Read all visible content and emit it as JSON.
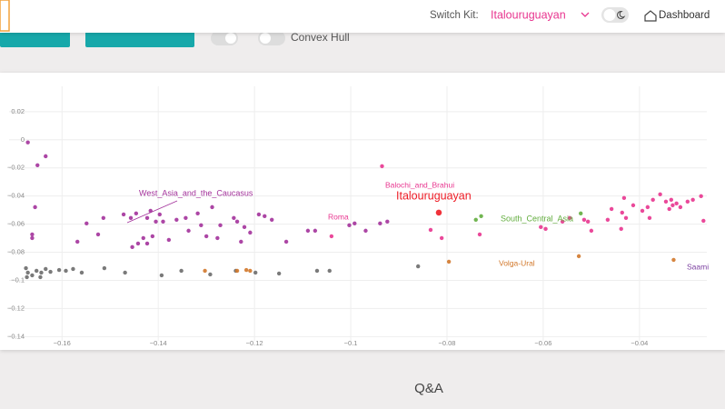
{
  "header": {
    "switch_label": "Switch Kit:",
    "kit": "Italouruguayan",
    "dashboard": "Dashboard"
  },
  "controls": {
    "convex_hull": "Convex Hull"
  },
  "chart_data": {
    "type": "scatter",
    "xlim": [
      -0.171,
      -0.026
    ],
    "ylim": [
      -0.143,
      0.038
    ],
    "xticks": [
      {
        "value": -0.16,
        "label": "−0.16"
      },
      {
        "value": -0.14,
        "label": "−0.14"
      },
      {
        "value": -0.12,
        "label": "−0.12"
      },
      {
        "value": -0.1,
        "label": "−0.1"
      },
      {
        "value": -0.08,
        "label": "−0.08"
      },
      {
        "value": -0.06,
        "label": "−0.06"
      },
      {
        "value": -0.04,
        "label": "−0.04"
      }
    ],
    "yticks": [
      0.02,
      0,
      {
        "value": -0.02,
        "label": "−0.02"
      },
      {
        "value": -0.04,
        "label": "−0.04"
      },
      {
        "value": -0.06,
        "label": "−0.06"
      },
      {
        "value": -0.08,
        "label": "−0.08"
      },
      {
        "value": -0.1,
        "label": "−0.1"
      },
      {
        "value": -0.12,
        "label": "−0.12"
      },
      {
        "value": -0.14,
        "label": "−0.14"
      }
    ],
    "grid": true,
    "series": [
      {
        "color": "#a3329b",
        "x": [
          -0.1671,
          -0.1651,
          -0.1634,
          -0.1662,
          -0.1656,
          -0.1662,
          -0.1568,
          -0.1549,
          -0.1525,
          -0.1514,
          -0.1472,
          -0.1457,
          -0.1454,
          -0.1442,
          -0.1431,
          -0.1423,
          -0.1416,
          -0.1412,
          -0.1405,
          -0.1397,
          -0.139,
          -0.1378,
          -0.1362,
          -0.1343,
          -0.1337,
          -0.1318,
          -0.1311,
          -0.13,
          -0.1288,
          -0.1277,
          -0.1271,
          -0.1243,
          -0.1236,
          -0.1228,
          -0.1221,
          -0.1209,
          -0.1191,
          -0.1179,
          -0.1164,
          -0.1134,
          -0.1089,
          -0.1074,
          -0.1003,
          -0.0992,
          -0.0969,
          -0.0939,
          -0.0924,
          -0.1423,
          -0.1446
        ],
        "values": [
          -0.0019,
          -0.0181,
          -0.0117,
          -0.0673,
          -0.0479,
          -0.0699,
          -0.0725,
          -0.0595,
          -0.0673,
          -0.0556,
          -0.0531,
          -0.0556,
          -0.0763,
          -0.0738,
          -0.0699,
          -0.0556,
          -0.0505,
          -0.0686,
          -0.0582,
          -0.0531,
          -0.0582,
          -0.0712,
          -0.0569,
          -0.0556,
          -0.0647,
          -0.0524,
          -0.0608,
          -0.0686,
          -0.0479,
          -0.0699,
          -0.0608,
          -0.0556,
          -0.0582,
          -0.0725,
          -0.0621,
          -0.066,
          -0.0531,
          -0.0543,
          -0.0569,
          -0.0725,
          -0.0647,
          -0.0647,
          -0.0608,
          -0.0595,
          -0.0647,
          -0.0595,
          -0.0582,
          -0.0738,
          -0.0524
        ]
      },
      {
        "color": "#e8358f",
        "x": [
          -0.104,
          -0.0935,
          -0.0834,
          -0.0811,
          -0.0732,
          -0.0605,
          -0.0595,
          -0.056,
          -0.0545,
          -0.0515,
          -0.0507,
          -0.05,
          -0.0466,
          -0.0458,
          -0.0438,
          -0.0436,
          -0.0432,
          -0.0428,
          -0.0413,
          -0.0383,
          -0.0379,
          -0.0372,
          -0.0357,
          -0.0345,
          -0.0334,
          -0.0331,
          -0.0323,
          -0.0315,
          -0.03,
          -0.0289,
          -0.0272,
          -0.0267,
          -0.0394,
          -0.0338
        ],
        "values": [
          -0.0686,
          -0.0188,
          -0.0641,
          -0.0699,
          -0.0673,
          -0.0621,
          -0.0634,
          -0.0582,
          -0.0556,
          -0.0569,
          -0.0582,
          -0.0647,
          -0.0569,
          -0.0492,
          -0.0634,
          -0.0518,
          -0.0414,
          -0.0556,
          -0.0466,
          -0.0479,
          -0.0556,
          -0.0427,
          -0.0388,
          -0.044,
          -0.0427,
          -0.0466,
          -0.0453,
          -0.0479,
          -0.044,
          -0.0427,
          -0.0401,
          -0.0576,
          -0.0505,
          -0.0492
        ]
      },
      {
        "color": "#6b6b6b",
        "x": [
          -0.1675,
          -0.1671,
          -0.1662,
          -0.1653,
          -0.1643,
          -0.1634,
          -0.1624,
          -0.1606,
          -0.1592,
          -0.1577,
          -0.1559,
          -0.1512,
          -0.1469,
          -0.1393,
          -0.1352,
          -0.1292,
          -0.1239,
          -0.1198,
          -0.1149,
          -0.107,
          -0.1044,
          -0.086,
          -0.1673,
          -0.1645
        ],
        "values": [
          -0.0913,
          -0.0945,
          -0.0964,
          -0.0932,
          -0.0945,
          -0.0919,
          -0.0939,
          -0.0926,
          -0.0932,
          -0.0919,
          -0.0945,
          -0.0913,
          -0.0945,
          -0.0964,
          -0.0932,
          -0.0958,
          -0.0932,
          -0.0945,
          -0.0951,
          -0.0932,
          -0.0932,
          -0.09,
          -0.0977,
          -0.0977
        ]
      },
      {
        "color": "#d2782b",
        "x": [
          -0.1303,
          -0.1236,
          -0.1217,
          -0.1209,
          -0.0796,
          -0.0526,
          -0.0329
        ],
        "values": [
          -0.0932,
          -0.0932,
          -0.0926,
          -0.0932,
          -0.0867,
          -0.0828,
          -0.0854
        ]
      },
      {
        "color": "#62ad3e",
        "x": [
          -0.074,
          -0.0729,
          -0.0522
        ],
        "values": [
          -0.0569,
          -0.0543,
          -0.0524
        ]
      },
      {
        "color": "#ee1c25",
        "x": [
          -0.0817
        ],
        "values": [
          -0.0518
        ]
      }
    ],
    "annotations": [
      {
        "text": "West_Asia_and_the_Caucasus",
        "color": "#a3329b"
      },
      {
        "text": "Balochi_and_Brahui",
        "color": "#e8358f"
      },
      {
        "text": "Italouruguayan",
        "color": "#ee1c25"
      },
      {
        "text": "Roma",
        "color": "#e8358f"
      },
      {
        "text": "South_Central_Asia",
        "color": "#62ad3e"
      },
      {
        "text": "Volga-Ural",
        "color": "#d2782b"
      },
      {
        "text": "Saami",
        "color": "#7b3fa0"
      }
    ]
  },
  "footer": {
    "qa": "Q&A"
  }
}
